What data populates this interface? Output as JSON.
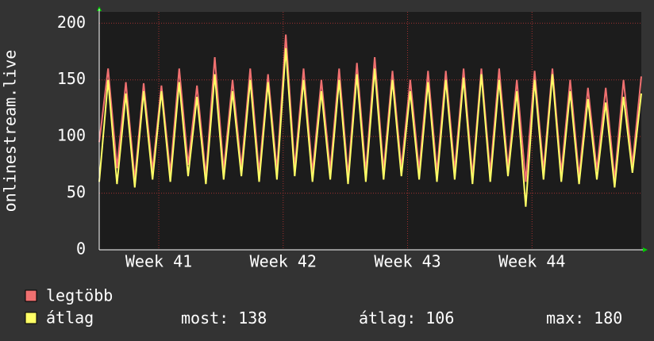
{
  "chart_data": {
    "type": "line",
    "y_label": "onlinestream.live",
    "x": [
      0,
      0.5,
      1,
      1.5,
      2,
      2.5,
      3,
      3.5,
      4,
      4.5,
      5,
      5.5,
      6,
      6.5,
      7,
      7.5,
      8,
      8.5,
      9,
      9.5,
      10,
      10.5,
      11,
      11.5,
      12,
      12.5,
      13,
      13.5,
      14,
      14.5,
      15,
      15.5,
      16,
      16.5,
      17,
      17.5,
      18,
      18.5,
      19,
      19.5,
      20,
      20.5,
      21,
      21.5,
      22,
      22.5,
      23,
      23.5,
      24,
      24.5,
      25,
      25.5,
      26,
      26.5,
      27,
      27.5,
      28,
      28.5,
      29,
      29.5,
      30,
      30.5
    ],
    "xlim": [
      0,
      30.5
    ],
    "xticks": [
      {
        "value": 3.35,
        "label": "Week 41"
      },
      {
        "value": 10.35,
        "label": "Week 42"
      },
      {
        "value": 17.35,
        "label": "Week 43"
      },
      {
        "value": 24.35,
        "label": "Week 44"
      }
    ],
    "ylim": [
      0,
      210
    ],
    "yticks": [
      0,
      50,
      100,
      150,
      200
    ],
    "grid": true,
    "series": [
      {
        "name": "legtöbb",
        "color": "#f07070",
        "values": [
          95,
          160,
          72,
          148,
          62,
          147,
          70,
          145,
          68,
          160,
          75,
          145,
          65,
          170,
          70,
          150,
          72,
          160,
          68,
          155,
          70,
          190,
          72,
          160,
          68,
          150,
          70,
          160,
          65,
          165,
          68,
          170,
          70,
          158,
          72,
          150,
          70,
          158,
          68,
          158,
          70,
          160,
          65,
          160,
          68,
          160,
          72,
          150,
          60,
          158,
          70,
          160,
          68,
          150,
          65,
          143,
          70,
          143,
          62,
          150,
          75,
          153
        ]
      },
      {
        "name": "átlag",
        "color": "#ffff66",
        "values": [
          60,
          150,
          58,
          138,
          55,
          140,
          62,
          140,
          60,
          148,
          65,
          135,
          58,
          155,
          62,
          140,
          65,
          150,
          60,
          148,
          62,
          178,
          65,
          150,
          60,
          140,
          62,
          150,
          58,
          155,
          60,
          160,
          62,
          150,
          65,
          140,
          62,
          148,
          60,
          150,
          62,
          152,
          58,
          155,
          60,
          150,
          65,
          140,
          38,
          150,
          62,
          155,
          60,
          140,
          58,
          133,
          62,
          130,
          55,
          135,
          68,
          138
        ]
      }
    ],
    "stats": [
      {
        "label": "most:",
        "value": 138
      },
      {
        "label": "átlag:",
        "value": 106
      },
      {
        "label": "max:",
        "value": 180
      }
    ]
  }
}
